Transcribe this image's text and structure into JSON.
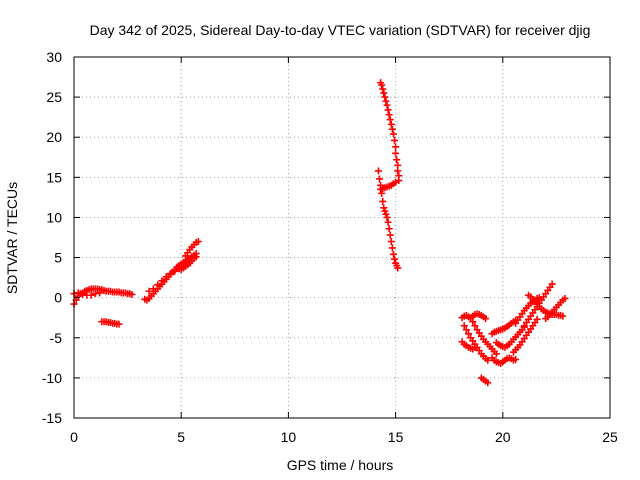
{
  "chart_data": {
    "type": "scatter",
    "title": "Day 342 of 2025, Sidereal Day-to-day VTEC variation (SDTVAR) for receiver djig",
    "xlabel": "GPS time / hours",
    "ylabel": "SDTVAR / TECUs",
    "xlim": [
      0,
      25
    ],
    "ylim": [
      -15,
      30
    ],
    "x_ticks": [
      0,
      5,
      10,
      15,
      20,
      25
    ],
    "y_ticks": [
      -15,
      -10,
      -5,
      0,
      5,
      10,
      15,
      20,
      25,
      30
    ],
    "grid": true,
    "marker": "+",
    "color": "#ff0000",
    "series": [
      {
        "points": [
          [
            0.0,
            -0.8
          ],
          [
            0.1,
            -0.3
          ],
          [
            0.2,
            0.2
          ],
          [
            0.3,
            0.5
          ],
          [
            0.4,
            0.6
          ],
          [
            0.5,
            0.8
          ],
          [
            0.6,
            0.9
          ],
          [
            0.7,
            1.0
          ],
          [
            0.8,
            1.1
          ],
          [
            0.9,
            1.1
          ],
          [
            1.0,
            1.1
          ],
          [
            1.1,
            1.1
          ],
          [
            1.2,
            1.0
          ],
          [
            1.3,
            1.0
          ],
          [
            1.4,
            0.9
          ],
          [
            1.5,
            0.8
          ],
          [
            1.6,
            0.8
          ],
          [
            1.7,
            0.8
          ],
          [
            1.8,
            0.7
          ],
          [
            1.9,
            0.7
          ],
          [
            2.0,
            0.7
          ],
          [
            2.1,
            0.7
          ],
          [
            2.2,
            0.6
          ],
          [
            2.3,
            0.6
          ],
          [
            2.4,
            0.6
          ],
          [
            2.5,
            0.5
          ],
          [
            2.6,
            0.5
          ],
          [
            2.7,
            0.4
          ],
          [
            0.0,
            0.5
          ],
          [
            0.2,
            0.6
          ],
          [
            0.4,
            0.4
          ],
          [
            0.6,
            0.3
          ],
          [
            0.8,
            0.3
          ],
          [
            1.0,
            0.5
          ],
          [
            1.2,
            0.6
          ],
          [
            1.3,
            -3.0
          ],
          [
            1.4,
            -3.0
          ],
          [
            1.5,
            -3.0
          ],
          [
            1.6,
            -3.1
          ],
          [
            1.7,
            -3.1
          ],
          [
            1.8,
            -3.2
          ],
          [
            1.9,
            -3.2
          ],
          [
            2.0,
            -3.3
          ],
          [
            2.1,
            -3.3
          ],
          [
            3.3,
            -0.2
          ],
          [
            3.4,
            -0.3
          ],
          [
            3.5,
            -0.1
          ],
          [
            3.6,
            0.2
          ],
          [
            3.7,
            0.5
          ],
          [
            3.8,
            0.8
          ],
          [
            3.9,
            1.1
          ],
          [
            4.0,
            1.4
          ],
          [
            4.1,
            1.7
          ],
          [
            4.2,
            2.0
          ],
          [
            4.3,
            2.3
          ],
          [
            4.4,
            2.6
          ],
          [
            4.5,
            2.9
          ],
          [
            4.6,
            3.2
          ],
          [
            4.7,
            3.5
          ],
          [
            4.8,
            3.8
          ],
          [
            3.5,
            0.8
          ],
          [
            3.7,
            1.1
          ],
          [
            3.9,
            1.6
          ],
          [
            4.1,
            2.1
          ],
          [
            4.3,
            2.6
          ],
          [
            4.5,
            3.0
          ],
          [
            4.7,
            3.3
          ],
          [
            4.9,
            3.6
          ],
          [
            4.9,
            4.0
          ],
          [
            5.0,
            4.2
          ],
          [
            5.1,
            4.4
          ],
          [
            5.2,
            4.5
          ],
          [
            5.3,
            4.7
          ],
          [
            5.4,
            4.9
          ],
          [
            5.5,
            5.1
          ],
          [
            5.6,
            5.3
          ],
          [
            5.7,
            5.5
          ],
          [
            5.0,
            3.5
          ],
          [
            5.1,
            3.7
          ],
          [
            5.2,
            3.9
          ],
          [
            5.3,
            4.1
          ],
          [
            5.4,
            4.3
          ],
          [
            5.5,
            4.6
          ],
          [
            5.6,
            4.9
          ],
          [
            5.7,
            5.1
          ],
          [
            5.2,
            5.2
          ],
          [
            5.3,
            5.6
          ],
          [
            5.4,
            6.0
          ],
          [
            5.5,
            6.3
          ],
          [
            5.6,
            6.6
          ],
          [
            5.7,
            6.9
          ],
          [
            5.8,
            7.0
          ],
          [
            14.3,
            26.8
          ],
          [
            14.35,
            26.5
          ],
          [
            14.4,
            26.0
          ],
          [
            14.45,
            25.5
          ],
          [
            14.5,
            25.0
          ],
          [
            14.55,
            24.5
          ],
          [
            14.6,
            24.0
          ],
          [
            14.65,
            23.4
          ],
          [
            14.7,
            22.8
          ],
          [
            14.75,
            22.2
          ],
          [
            14.8,
            21.6
          ],
          [
            14.85,
            21.0
          ],
          [
            14.9,
            20.4
          ],
          [
            14.95,
            19.6
          ],
          [
            15.0,
            18.8
          ],
          [
            15.0,
            18.0
          ],
          [
            15.05,
            17.2
          ],
          [
            15.1,
            16.5
          ],
          [
            15.1,
            15.8
          ],
          [
            15.15,
            15.2
          ],
          [
            15.15,
            14.6
          ],
          [
            15.0,
            14.4
          ],
          [
            14.9,
            14.2
          ],
          [
            14.8,
            14.0
          ],
          [
            14.7,
            13.9
          ],
          [
            14.6,
            13.8
          ],
          [
            14.5,
            13.7
          ],
          [
            14.4,
            13.6
          ],
          [
            14.3,
            13.5
          ],
          [
            14.2,
            15.8
          ],
          [
            14.25,
            14.8
          ],
          [
            14.3,
            14.0
          ],
          [
            14.35,
            13.0
          ],
          [
            14.4,
            12.0
          ],
          [
            14.45,
            11.2
          ],
          [
            14.5,
            10.8
          ],
          [
            14.55,
            10.4
          ],
          [
            14.6,
            10.0
          ],
          [
            14.65,
            9.4
          ],
          [
            14.7,
            8.6
          ],
          [
            14.75,
            7.8
          ],
          [
            14.8,
            7.0
          ],
          [
            14.85,
            6.2
          ],
          [
            14.9,
            5.4
          ],
          [
            14.95,
            4.8
          ],
          [
            15.0,
            4.3
          ],
          [
            15.05,
            4.0
          ],
          [
            15.1,
            3.7
          ],
          [
            18.1,
            -2.5
          ],
          [
            18.2,
            -2.3
          ],
          [
            18.3,
            -2.2
          ],
          [
            18.4,
            -2.4
          ],
          [
            18.5,
            -2.6
          ],
          [
            18.6,
            -2.3
          ],
          [
            18.7,
            -2.1
          ],
          [
            18.8,
            -2.0
          ],
          [
            18.9,
            -2.1
          ],
          [
            19.0,
            -2.2
          ],
          [
            19.1,
            -2.4
          ],
          [
            19.2,
            -2.6
          ],
          [
            18.1,
            -5.5
          ],
          [
            18.2,
            -5.8
          ],
          [
            18.3,
            -6.0
          ],
          [
            18.4,
            -6.2
          ],
          [
            18.5,
            -6.3
          ],
          [
            18.6,
            -6.4
          ],
          [
            18.7,
            -6.2
          ],
          [
            18.2,
            -3.5
          ],
          [
            18.3,
            -4.0
          ],
          [
            18.4,
            -4.5
          ],
          [
            18.5,
            -5.0
          ],
          [
            18.6,
            -5.4
          ],
          [
            18.7,
            -5.8
          ],
          [
            18.8,
            -6.2
          ],
          [
            18.9,
            -6.6
          ],
          [
            19.0,
            -7.0
          ],
          [
            19.1,
            -7.3
          ],
          [
            19.2,
            -7.6
          ],
          [
            19.3,
            -7.8
          ],
          [
            18.5,
            -2.5
          ],
          [
            18.6,
            -3.0
          ],
          [
            18.7,
            -3.5
          ],
          [
            18.8,
            -4.0
          ],
          [
            18.9,
            -4.4
          ],
          [
            19.0,
            -4.8
          ],
          [
            19.1,
            -5.2
          ],
          [
            19.2,
            -5.5
          ],
          [
            19.3,
            -5.8
          ],
          [
            19.4,
            -6.1
          ],
          [
            19.5,
            -6.4
          ],
          [
            19.6,
            -6.7
          ],
          [
            19.7,
            -7.0
          ],
          [
            19.0,
            -10.0
          ],
          [
            19.1,
            -10.2
          ],
          [
            19.2,
            -10.4
          ],
          [
            19.3,
            -10.6
          ],
          [
            19.5,
            -7.5
          ],
          [
            19.6,
            -7.8
          ],
          [
            19.7,
            -8.0
          ],
          [
            19.8,
            -8.1
          ],
          [
            19.9,
            -8.2
          ],
          [
            20.0,
            -8.0
          ],
          [
            20.1,
            -7.8
          ],
          [
            20.2,
            -7.6
          ],
          [
            20.3,
            -7.5
          ],
          [
            20.4,
            -7.6
          ],
          [
            20.5,
            -7.8
          ],
          [
            20.6,
            -7.7
          ],
          [
            19.5,
            -4.5
          ],
          [
            19.6,
            -4.3
          ],
          [
            19.7,
            -4.2
          ],
          [
            19.8,
            -4.1
          ],
          [
            19.9,
            -4.0
          ],
          [
            20.0,
            -3.9
          ],
          [
            20.1,
            -3.8
          ],
          [
            20.2,
            -3.6
          ],
          [
            20.3,
            -3.4
          ],
          [
            20.4,
            -3.2
          ],
          [
            20.5,
            -3.0
          ],
          [
            20.6,
            -2.8
          ],
          [
            19.7,
            -5.6
          ],
          [
            19.8,
            -5.8
          ],
          [
            19.9,
            -6.0
          ],
          [
            20.0,
            -6.1
          ],
          [
            20.1,
            -6.2
          ],
          [
            20.2,
            -6.0
          ],
          [
            20.3,
            -5.8
          ],
          [
            20.4,
            -5.5
          ],
          [
            20.5,
            -5.2
          ],
          [
            20.6,
            -4.9
          ],
          [
            20.7,
            -4.6
          ],
          [
            20.8,
            -4.3
          ],
          [
            20.9,
            -4.0
          ],
          [
            21.0,
            -3.7
          ],
          [
            20.5,
            -6.8
          ],
          [
            20.6,
            -6.5
          ],
          [
            20.7,
            -6.2
          ],
          [
            20.8,
            -5.9
          ],
          [
            20.9,
            -5.5
          ],
          [
            21.0,
            -5.1
          ],
          [
            21.1,
            -4.7
          ],
          [
            21.2,
            -4.3
          ],
          [
            21.3,
            -3.9
          ],
          [
            21.4,
            -3.5
          ],
          [
            21.5,
            -3.1
          ],
          [
            21.6,
            -2.7
          ],
          [
            20.6,
            -3.2
          ],
          [
            20.7,
            -2.8
          ],
          [
            20.8,
            -2.4
          ],
          [
            20.9,
            -2.0
          ],
          [
            21.0,
            -1.6
          ],
          [
            21.1,
            -1.3
          ],
          [
            21.2,
            -1.0
          ],
          [
            21.3,
            -0.7
          ],
          [
            21.4,
            -0.5
          ],
          [
            21.5,
            -0.3
          ],
          [
            21.6,
            -0.1
          ],
          [
            21.7,
            0.0
          ],
          [
            21.0,
            -3.5
          ],
          [
            21.1,
            -3.1
          ],
          [
            21.2,
            -2.7
          ],
          [
            21.3,
            -2.3
          ],
          [
            21.4,
            -1.9
          ],
          [
            21.5,
            -1.5
          ],
          [
            21.6,
            -1.1
          ],
          [
            21.7,
            -0.7
          ],
          [
            21.8,
            -0.3
          ],
          [
            21.9,
            0.1
          ],
          [
            22.0,
            0.5
          ],
          [
            22.1,
            0.9
          ],
          [
            22.2,
            1.3
          ],
          [
            22.3,
            1.7
          ],
          [
            21.2,
            0.3
          ],
          [
            21.3,
            0.1
          ],
          [
            21.4,
            -0.2
          ],
          [
            21.5,
            -0.5
          ],
          [
            21.6,
            -0.8
          ],
          [
            21.7,
            -1.1
          ],
          [
            21.8,
            -1.4
          ],
          [
            21.9,
            -1.6
          ],
          [
            22.0,
            -1.8
          ],
          [
            22.1,
            -1.9
          ],
          [
            22.2,
            -2.0
          ],
          [
            22.3,
            -2.1
          ],
          [
            22.4,
            -2.1
          ],
          [
            22.5,
            -2.1
          ],
          [
            22.6,
            -2.2
          ],
          [
            22.7,
            -2.2
          ],
          [
            22.8,
            -2.3
          ],
          [
            22.0,
            -2.6
          ],
          [
            22.1,
            -2.4
          ],
          [
            22.2,
            -2.1
          ],
          [
            22.3,
            -1.8
          ],
          [
            22.4,
            -1.5
          ],
          [
            22.5,
            -1.2
          ],
          [
            22.6,
            -0.9
          ],
          [
            22.7,
            -0.6
          ],
          [
            22.8,
            -0.3
          ],
          [
            22.9,
            -0.1
          ]
        ]
      }
    ]
  }
}
